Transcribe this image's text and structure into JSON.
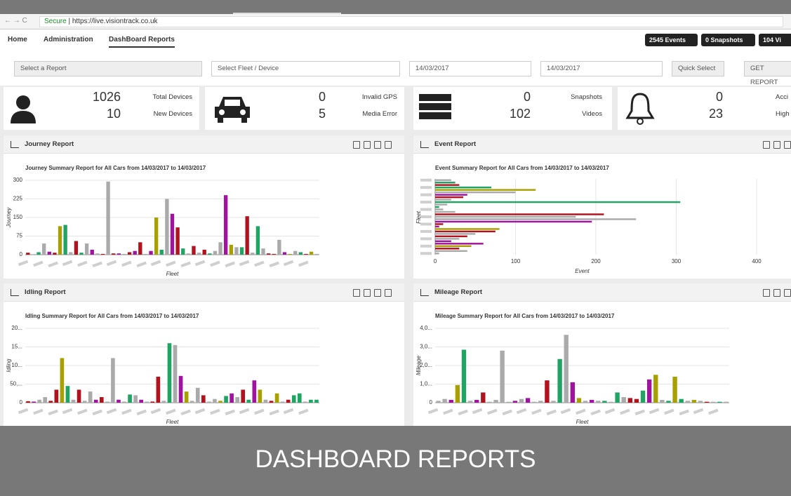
{
  "browser": {
    "secure": "Secure",
    "url": "https://live.visiontrack.co.uk"
  },
  "nav": {
    "items": [
      "Home",
      "Administration",
      "DashBoard Reports"
    ],
    "badges": [
      "2545 Events",
      "0 Snapshots",
      "104 Vi"
    ]
  },
  "filters": {
    "report": "Select a Report",
    "fleet": "Select Fleet / Device",
    "date_from": "14/03/2017",
    "date_to": "14/03/2017",
    "quick": "Quick Select",
    "get": "GET REPORT"
  },
  "stats": [
    {
      "rows": [
        {
          "value": 1026,
          "label": "Total Devices"
        },
        {
          "value": 10,
          "label": "New Devices"
        }
      ]
    },
    {
      "rows": [
        {
          "value": 0,
          "label": "Invalid GPS"
        },
        {
          "value": 5,
          "label": "Media Error"
        }
      ]
    },
    {
      "rows": [
        {
          "value": 0,
          "label": "Snapshots"
        },
        {
          "value": 102,
          "label": "Videos"
        }
      ]
    },
    {
      "rows": [
        {
          "value": 0,
          "label": "Acci"
        },
        {
          "value": 23,
          "label": "High"
        }
      ]
    }
  ],
  "panels": [
    "Journey Report",
    "Event Report",
    "Idling Report",
    "Mileage Report"
  ],
  "banner": "DASHBOARD REPORTS",
  "chart_data": [
    {
      "type": "bar",
      "title": "Journey Summary Report for All Cars from 14/03/2017 to 14/03/2017",
      "xlabel": "Fleet",
      "ylabel": "Journey",
      "values": [
        8,
        2,
        10,
        45,
        12,
        8,
        115,
        120,
        10,
        55,
        8,
        45,
        20,
        5,
        3,
        295,
        5,
        5,
        3,
        10,
        15,
        50,
        3,
        15,
        150,
        20,
        225,
        165,
        110,
        25,
        5,
        35,
        8,
        20,
        5,
        15,
        50,
        240,
        40,
        30,
        30,
        155,
        8,
        115,
        25,
        5,
        3,
        60,
        10,
        3,
        15,
        10,
        3,
        12,
        3
      ],
      "colors": [
        "#b0131d",
        "#aaaaaa",
        "#1fa463",
        "#aaaaaa",
        "#a0139f",
        "#b0131d",
        "#a8a000",
        "#1fa463",
        "#aaaaaa",
        "#b0131d",
        "#1fa463",
        "#aaaaaa",
        "#a0139f",
        "#aaaaaa",
        "#b0131d",
        "#aaaaaa",
        "#b0131d",
        "#a0139f",
        "#aaaaaa",
        "#b0131d",
        "#a0139f",
        "#b0131d",
        "#aaaaaa",
        "#a0139f",
        "#a8a000",
        "#1fa463",
        "#aaaaaa",
        "#a0139f",
        "#b0131d",
        "#1fa463",
        "#aaaaaa",
        "#b0131d",
        "#aaaaaa",
        "#b0131d",
        "#1fa463",
        "#aaaaaa",
        "#aaaaaa",
        "#a0139f",
        "#a8a000",
        "#aaaaaa",
        "#1fa463",
        "#b0131d",
        "#aaaaaa",
        "#1fa463",
        "#aaaaaa",
        "#b0131d",
        "#b0131d",
        "#aaaaaa",
        "#a0139f",
        "#a8a000",
        "#aaaaaa",
        "#1fa463",
        "#b0131d",
        "#a8a000",
        "#aaaaaa"
      ],
      "ylim": [
        0,
        300
      ],
      "yticks": [
        0,
        75,
        150,
        225,
        300
      ],
      "grid": true
    },
    {
      "type": "barh",
      "title": "Event Summary Report for All Cars from 14/03/2017 to 14/03/2017",
      "xlabel": "Event",
      "ylabel": "Fleet",
      "values": [
        20,
        25,
        30,
        70,
        125,
        100,
        40,
        35,
        20,
        305,
        15,
        5,
        10,
        25,
        210,
        175,
        250,
        195,
        10,
        5,
        80,
        75,
        50,
        40,
        30,
        20,
        60,
        45,
        30,
        40,
        5
      ],
      "colors": [
        "#aaaaaa",
        "#1fa463",
        "#b0131d",
        "#1fa463",
        "#a8a000",
        "#aaaaaa",
        "#a0139f",
        "#b0131d",
        "#aaaaaa",
        "#1fa463",
        "#aaaaaa",
        "#1fa463",
        "#aaaaaa",
        "#aaaaaa",
        "#b0131d",
        "#aaaaaa",
        "#aaaaaa",
        "#a0139f",
        "#b0131d",
        "#a0139f",
        "#a8a000",
        "#b0131d",
        "#aaaaaa",
        "#b0131d",
        "#aaaaaa",
        "#a0139f",
        "#a0139f",
        "#a8a000",
        "#b0131d",
        "#aaaaaa",
        "#aaaaaa"
      ],
      "xlim": [
        0,
        400
      ],
      "xticks": [
        0,
        100,
        200,
        300,
        400
      ],
      "grid": true
    },
    {
      "type": "bar",
      "title": "Idling Summary Report for All Cars from 14/03/2017 to 14/03/2017",
      "xlabel": "Fleet",
      "ylabel": "Idling",
      "values": [
        4000,
        3000,
        8000,
        15000,
        5000,
        35000,
        120000,
        45000,
        8000,
        35000,
        5000,
        30000,
        8000,
        15000,
        3000,
        120000,
        8000,
        3000,
        22000,
        20000,
        8000,
        3000,
        3000,
        70000,
        5000,
        160000,
        155000,
        72000,
        30000,
        5000,
        40000,
        20000,
        3000,
        10000,
        5000,
        18000,
        25000,
        15000,
        35000,
        8000,
        60000,
        35000,
        8000,
        5000,
        25000,
        3000,
        8000,
        20000,
        25000,
        3000,
        8000,
        8000
      ],
      "colors": [
        "#b0131d",
        "#a0139f",
        "#aaaaaa",
        "#aaaaaa",
        "#b0131d",
        "#b0131d",
        "#a8a000",
        "#1fa463",
        "#aaaaaa",
        "#b0131d",
        "#aaaaaa",
        "#aaaaaa",
        "#a0139f",
        "#b0131d",
        "#aaaaaa",
        "#aaaaaa",
        "#a0139f",
        "#aaaaaa",
        "#1fa463",
        "#aaaaaa",
        "#a0139f",
        "#aaaaaa",
        "#b0131d",
        "#b0131d",
        "#aaaaaa",
        "#1fa463",
        "#aaaaaa",
        "#a0139f",
        "#a8a000",
        "#aaaaaa",
        "#aaaaaa",
        "#b0131d",
        "#aaaaaa",
        "#aaaaaa",
        "#a8a000",
        "#1fa463",
        "#a0139f",
        "#aaaaaa",
        "#b0131d",
        "#1fa463",
        "#a0139f",
        "#a8a000",
        "#aaaaaa",
        "#b0131d",
        "#a8a000",
        "#aaaaaa",
        "#b0131d",
        "#1fa463",
        "#1fa463",
        "#aaaaaa",
        "#1fa463",
        "#1fa463"
      ],
      "ylim": [
        0,
        200000
      ],
      "yticks": [
        0,
        {
          "value": 50000,
          "label": "50,..."
        },
        {
          "value": 100000,
          "label": "10..."
        },
        {
          "value": 150000,
          "label": "15..."
        },
        {
          "value": 200000,
          "label": "20..."
        }
      ],
      "grid": true
    },
    {
      "type": "bar",
      "title": "Mileage Summary Report for All Cars from 14/03/2017 to 14/03/2017",
      "xlabel": "Fleet",
      "ylabel": "Mileage",
      "values": [
        100,
        200,
        150,
        950,
        2850,
        100,
        150,
        550,
        50,
        150,
        2800,
        50,
        100,
        200,
        250,
        50,
        100,
        1200,
        100,
        2350,
        3650,
        1100,
        250,
        100,
        150,
        100,
        100,
        50,
        550,
        300,
        250,
        200,
        650,
        1250,
        1500,
        150,
        100,
        1400,
        200,
        100,
        150,
        100,
        50,
        50,
        50,
        50
      ],
      "colors": [
        "#aaaaaa",
        "#aaaaaa",
        "#a0139f",
        "#a8a000",
        "#1fa463",
        "#aaaaaa",
        "#a0139f",
        "#b0131d",
        "#aaaaaa",
        "#aaaaaa",
        "#aaaaaa",
        "#aaaaaa",
        "#a0139f",
        "#aaaaaa",
        "#a0139f",
        "#aaaaaa",
        "#aaaaaa",
        "#b0131d",
        "#aaaaaa",
        "#1fa463",
        "#aaaaaa",
        "#a0139f",
        "#a8a000",
        "#aaaaaa",
        "#a0139f",
        "#aaaaaa",
        "#1fa463",
        "#aaaaaa",
        "#1fa463",
        "#aaaaaa",
        "#b0131d",
        "#b0131d",
        "#1fa463",
        "#a0139f",
        "#a8a000",
        "#aaaaaa",
        "#1fa463",
        "#a8a000",
        "#1fa463",
        "#aaaaaa",
        "#a8a000",
        "#aaaaaa",
        "#b0131d",
        "#aaaaaa",
        "#1fa463",
        "#aaaaaa"
      ],
      "ylim": [
        0,
        4000
      ],
      "yticks": [
        0,
        {
          "value": 1000,
          "label": "1,0..."
        },
        {
          "value": 2000,
          "label": "2,0..."
        },
        {
          "value": 3000,
          "label": "3,0..."
        },
        {
          "value": 4000,
          "label": "4,0..."
        }
      ],
      "grid": true
    }
  ]
}
